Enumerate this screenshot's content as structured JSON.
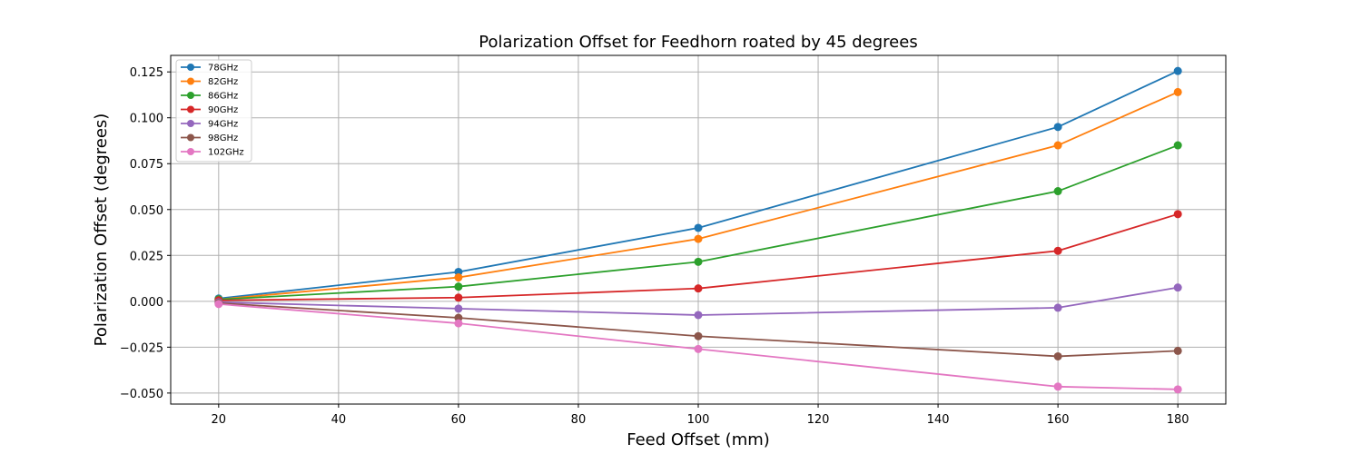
{
  "chart_data": {
    "type": "line",
    "title": "Polarization Offset for Feedhorn roated by 45 degrees",
    "xlabel": "Feed Offset (mm)",
    "ylabel": "Polarization Offset (degrees)",
    "x": [
      20,
      60,
      100,
      160,
      180
    ],
    "xlim": [
      12,
      188
    ],
    "ylim": [
      -0.056,
      0.134
    ],
    "xticks": [
      "20",
      "40",
      "60",
      "80",
      "100",
      "120",
      "140",
      "160",
      "180"
    ],
    "yticks": [
      "−0.050",
      "−0.025",
      "0.000",
      "0.025",
      "0.050",
      "0.075",
      "0.100",
      "0.125"
    ],
    "grid": true,
    "legend_position": "top-left",
    "marker": "circle",
    "series": [
      {
        "name": "78GHz",
        "color": "#1f77b4",
        "values": [
          0.0015,
          0.016,
          0.04,
          0.095,
          0.1255
        ]
      },
      {
        "name": "82GHz",
        "color": "#ff7f0e",
        "values": [
          0.001,
          0.013,
          0.034,
          0.085,
          0.114
        ]
      },
      {
        "name": "86GHz",
        "color": "#2ca02c",
        "values": [
          0.001,
          0.008,
          0.0215,
          0.06,
          0.085
        ]
      },
      {
        "name": "90GHz",
        "color": "#d62728",
        "values": [
          0.0005,
          0.002,
          0.007,
          0.0275,
          0.0475
        ]
      },
      {
        "name": "94GHz",
        "color": "#9467bd",
        "values": [
          -0.0005,
          -0.004,
          -0.0075,
          -0.0035,
          0.0075
        ]
      },
      {
        "name": "98GHz",
        "color": "#8c564b",
        "values": [
          -0.001,
          -0.009,
          -0.019,
          -0.03,
          -0.027
        ]
      },
      {
        "name": "102GHz",
        "color": "#e377c2",
        "values": [
          -0.0015,
          -0.012,
          -0.026,
          -0.0465,
          -0.048
        ]
      }
    ]
  }
}
